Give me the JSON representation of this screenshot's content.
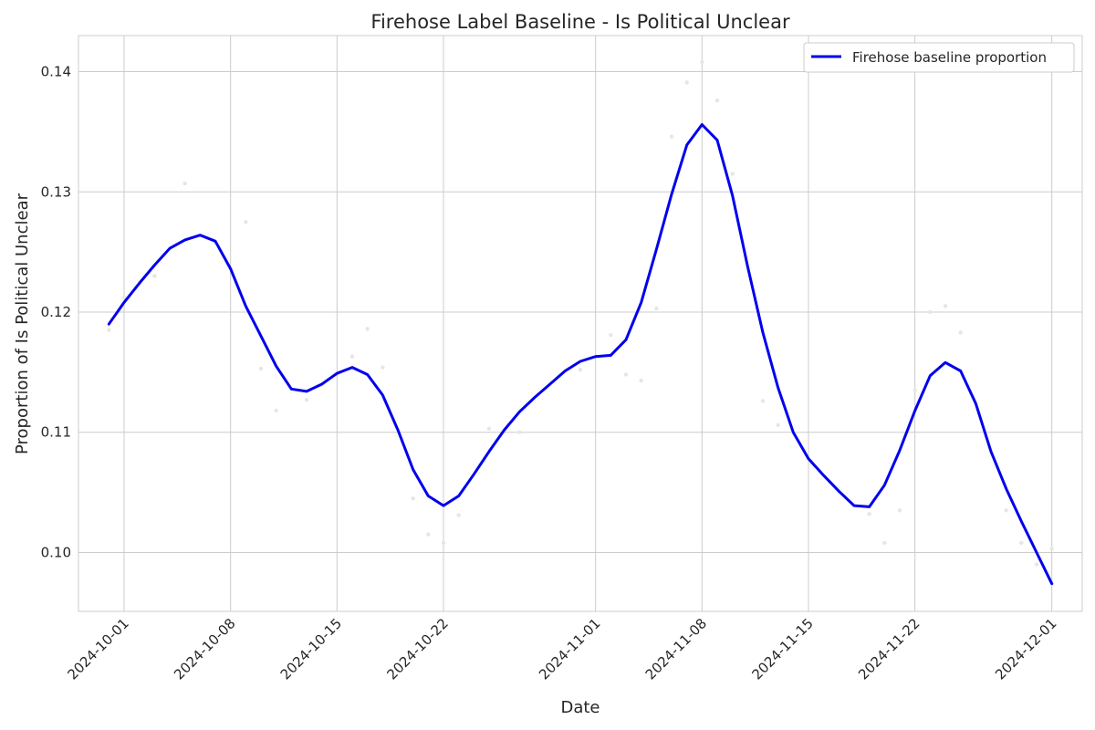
{
  "chart_data": {
    "type": "line",
    "title": "Firehose Label Baseline - Is Political Unclear",
    "xlabel": "Date",
    "ylabel": "Proportion of Is Political Unclear",
    "x_ticks": [
      "2024-10-01",
      "2024-10-08",
      "2024-10-15",
      "2024-10-22",
      "2024-11-01",
      "2024-11-08",
      "2024-11-15",
      "2024-11-22",
      "2024-12-01"
    ],
    "y_ticks": [
      0.1,
      0.11,
      0.12,
      0.13,
      0.14
    ],
    "y_tick_labels": [
      "0.10",
      "0.11",
      "0.12",
      "0.13",
      "0.14"
    ],
    "xlim": [
      "2024-09-28",
      "2024-12-03"
    ],
    "ylim": [
      0.0951,
      0.143
    ],
    "grid": true,
    "legend_position": "top-right",
    "colors": {
      "line": "#0000ee",
      "grid": "#cccccc",
      "points": "#e6e6e6"
    },
    "series": [
      {
        "name": "Firehose baseline proportion",
        "x": [
          "2024-09-30",
          "2024-10-01",
          "2024-10-02",
          "2024-10-03",
          "2024-10-04",
          "2024-10-05",
          "2024-10-06",
          "2024-10-07",
          "2024-10-08",
          "2024-10-09",
          "2024-10-10",
          "2024-10-11",
          "2024-10-12",
          "2024-10-13",
          "2024-10-14",
          "2024-10-15",
          "2024-10-16",
          "2024-10-17",
          "2024-10-18",
          "2024-10-19",
          "2024-10-20",
          "2024-10-21",
          "2024-10-22",
          "2024-10-23",
          "2024-10-24",
          "2024-10-25",
          "2024-10-26",
          "2024-10-27",
          "2024-10-28",
          "2024-10-29",
          "2024-10-30",
          "2024-10-31",
          "2024-11-01",
          "2024-11-02",
          "2024-11-03",
          "2024-11-04",
          "2024-11-05",
          "2024-11-06",
          "2024-11-07",
          "2024-11-08",
          "2024-11-09",
          "2024-11-10",
          "2024-11-11",
          "2024-11-12",
          "2024-11-13",
          "2024-11-14",
          "2024-11-15",
          "2024-11-16",
          "2024-11-17",
          "2024-11-18",
          "2024-11-19",
          "2024-11-20",
          "2024-11-21",
          "2024-11-22",
          "2024-11-23",
          "2024-11-24",
          "2024-11-25",
          "2024-11-26",
          "2024-11-27",
          "2024-11-28",
          "2024-11-29",
          "2024-11-30",
          "2024-12-01"
        ],
        "y": [
          0.119,
          0.1208,
          0.1224,
          0.1239,
          0.1253,
          0.126,
          0.1264,
          0.1259,
          0.1236,
          0.1205,
          0.118,
          0.1155,
          0.1136,
          0.1134,
          0.114,
          0.1149,
          0.1154,
          0.1148,
          0.1131,
          0.1102,
          0.1069,
          0.1047,
          0.1039,
          0.1047,
          0.1065,
          0.1084,
          0.1102,
          0.1117,
          0.1129,
          0.114,
          0.1151,
          0.1159,
          0.1163,
          0.1164,
          0.1177,
          0.1208,
          0.1252,
          0.1298,
          0.1339,
          0.1356,
          0.1343,
          0.1297,
          0.1238,
          0.1183,
          0.1137,
          0.11,
          0.1078,
          0.1064,
          0.1051,
          0.1039,
          0.1038,
          0.1056,
          0.1085,
          0.1118,
          0.1147,
          0.1158,
          0.1151,
          0.1124,
          0.1084,
          0.1053,
          0.1026,
          0.1,
          0.0974
        ]
      }
    ],
    "raw_points": {
      "x": [
        "2024-09-30",
        "2024-10-01",
        "2024-10-03",
        "2024-10-05",
        "2024-10-07",
        "2024-10-09",
        "2024-10-10",
        "2024-10-11",
        "2024-10-13",
        "2024-10-16",
        "2024-10-17",
        "2024-10-18",
        "2024-10-20",
        "2024-10-21",
        "2024-10-22",
        "2024-10-23",
        "2024-10-25",
        "2024-10-27",
        "2024-10-31",
        "2024-11-02",
        "2024-11-03",
        "2024-11-04",
        "2024-11-05",
        "2024-11-06",
        "2024-11-07",
        "2024-11-08",
        "2024-11-09",
        "2024-11-10",
        "2024-11-12",
        "2024-11-13",
        "2024-11-19",
        "2024-11-20",
        "2024-11-21",
        "2024-11-22",
        "2024-11-23",
        "2024-11-24",
        "2024-11-25",
        "2024-11-28",
        "2024-11-29",
        "2024-11-30",
        "2024-12-01"
      ],
      "y": [
        0.1185,
        0.1212,
        0.123,
        0.1307,
        0.1258,
        0.1275,
        0.1153,
        0.1118,
        0.1127,
        0.1163,
        0.1186,
        0.1154,
        0.1045,
        0.1015,
        0.1008,
        0.1031,
        0.1103,
        0.11,
        0.1152,
        0.1181,
        0.1148,
        0.1143,
        0.1203,
        0.1346,
        0.1391,
        0.1408,
        0.1376,
        0.1315,
        0.1126,
        0.1106,
        0.1032,
        0.1008,
        0.1035,
        0.1135,
        0.12,
        0.1205,
        0.1183,
        0.1035,
        0.1008,
        0.099,
        0.1003
      ]
    }
  }
}
